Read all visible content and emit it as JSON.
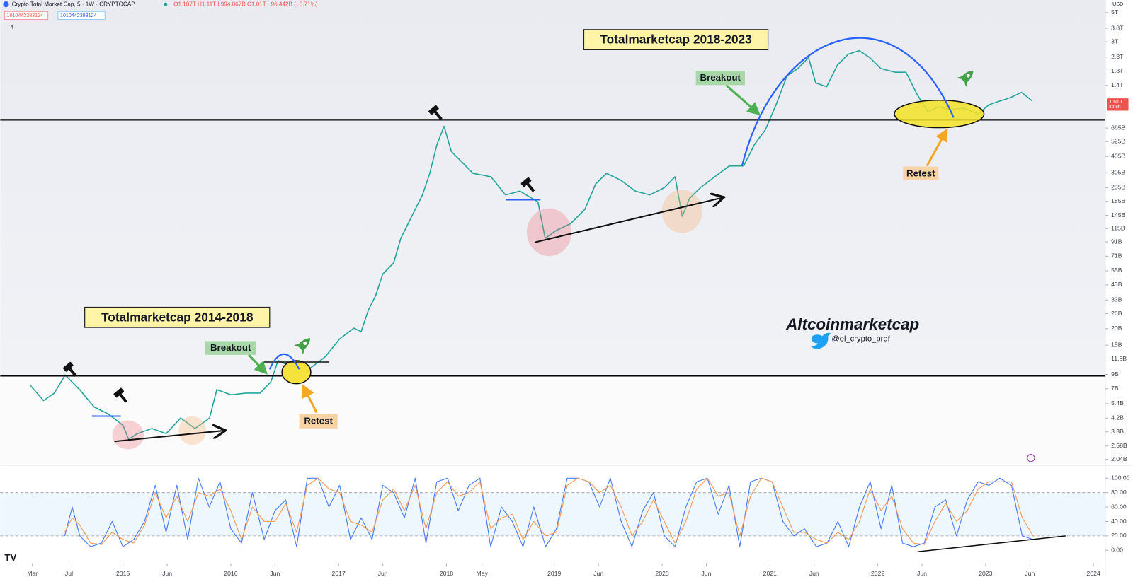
{
  "header": {
    "title": "Crypto Total Market Cap, 5 · 1W · CRYPTOCAP",
    "ohlc": "O1.107T H1.11T L994.067B C1.01T −96.442B (−8.71%)",
    "inputs": [
      "1010442383124",
      "1010442383124"
    ],
    "indicator_count": "4",
    "currency": "USD"
  },
  "chart_data": [
    {
      "type": "line",
      "log_scale": true,
      "grid": false,
      "color": "#26a69a",
      "annotations": [
        "Totalmarketcap 2018-2023",
        "Totalmarketcap 2014-2018",
        "Breakout",
        "Breakout",
        "Retest",
        "Retest",
        "Altcoinmarketcap",
        "@el_crypto_prof"
      ],
      "xlim": [
        2013.862,
        2024.11
      ],
      "ylim": [
        1890000000.0,
        6230000000000.0
      ],
      "yticks": [
        {
          "value": 5000000000000.0,
          "label": "5T"
        },
        {
          "value": 3800000000000.0,
          "label": "3.8T"
        },
        {
          "value": 3000000000000.0,
          "label": "3T"
        },
        {
          "value": 2300000000000.0,
          "label": "2.3T"
        },
        {
          "value": 1800000000000.0,
          "label": "1.8T"
        },
        {
          "value": 1400000000000.0,
          "label": "1.4T"
        },
        {
          "value": 665000000000.0,
          "label": "665B"
        },
        {
          "value": 525000000000.0,
          "label": "525B"
        },
        {
          "value": 405000000000.0,
          "label": "405B"
        },
        {
          "value": 305000000000.0,
          "label": "305B"
        },
        {
          "value": 235000000000.0,
          "label": "235B"
        },
        {
          "value": 185000000000.0,
          "label": "185B"
        },
        {
          "value": 145000000000.0,
          "label": "145B"
        },
        {
          "value": 115000000000.0,
          "label": "115B"
        },
        {
          "value": 91000000000.0,
          "label": "91B"
        },
        {
          "value": 71000000000.0,
          "label": "71B"
        },
        {
          "value": 55000000000.0,
          "label": "55B"
        },
        {
          "value": 43000000000.0,
          "label": "43B"
        },
        {
          "value": 33000000000.0,
          "label": "33B"
        },
        {
          "value": 26000000000.0,
          "label": "26B"
        },
        {
          "value": 20000000000.0,
          "label": "20B"
        },
        {
          "value": 15000000000.0,
          "label": "15B"
        },
        {
          "value": 11800000000.0,
          "label": "11.8B"
        },
        {
          "value": 9000000000.0,
          "label": "9B"
        },
        {
          "value": 7000000000.0,
          "label": "7B"
        },
        {
          "value": 5400000000.0,
          "label": "5.4B"
        },
        {
          "value": 4200000000.0,
          "label": "4.2B"
        },
        {
          "value": 3300000000.0,
          "label": "3.3B"
        },
        {
          "value": 2580000000.0,
          "label": "2.58B"
        },
        {
          "value": 2040000000.0,
          "label": "2.04B"
        }
      ],
      "last_value": {
        "value": 1010000000000.0,
        "label": "1.01T"
      },
      "countdown": "3d 8h",
      "x": [
        2014.143,
        2014.264,
        2014.364,
        2014.464,
        2014.598,
        2014.732,
        2014.866,
        2015.0,
        2015.053,
        2015.134,
        2015.268,
        2015.401,
        2015.535,
        2015.669,
        2015.803,
        2015.87,
        2016.004,
        2016.138,
        2016.272,
        2016.372,
        2016.439,
        2016.506,
        2016.606,
        2016.74,
        2016.874,
        2017.008,
        2017.142,
        2017.209,
        2017.276,
        2017.343,
        2017.409,
        2017.51,
        2017.577,
        2017.644,
        2017.711,
        2017.778,
        2017.845,
        2017.912,
        2017.978,
        2018.045,
        2018.146,
        2018.246,
        2018.413,
        2018.547,
        2018.681,
        2018.849,
        2018.916,
        2019.016,
        2019.15,
        2019.284,
        2019.384,
        2019.484,
        2019.618,
        2019.752,
        2019.886,
        2020.02,
        2020.12,
        2020.187,
        2020.254,
        2020.355,
        2020.488,
        2020.622,
        2020.756,
        2020.857,
        2020.957,
        2021.057,
        2021.158,
        2021.258,
        2021.358,
        2021.425,
        2021.526,
        2021.626,
        2021.727,
        2021.827,
        2021.927,
        2022.028,
        2022.162,
        2022.262,
        2022.362,
        2022.463,
        2022.563,
        2022.663,
        2022.797,
        2022.931,
        2023.032,
        2023.132,
        2023.233,
        2023.333,
        2023.433
      ],
      "values": [
        7400000000.0,
        5700000000.0,
        6500000000.0,
        8900000000.0,
        6900000000.0,
        5100000000.0,
        4500000000.0,
        3700000000.0,
        2900000000.0,
        3200000000.0,
        3500000000.0,
        3200000000.0,
        4200000000.0,
        3500000000.0,
        4200000000.0,
        6900000000.0,
        6300000000.0,
        6500000000.0,
        6500000000.0,
        7900000000.0,
        11500000000.0,
        10800000000.0,
        9500000000.0,
        10100000000.0,
        12200000000.0,
        16700000000.0,
        20200000000.0,
        19000000000.0,
        27700000000.0,
        35600000000.0,
        52000000000.0,
        63000000000.0,
        97000000000.0,
        125000000000.0,
        161000000000.0,
        207000000000.0,
        302000000000.0,
        500000000000.0,
        685000000000.0,
        442000000000.0,
        366000000000.0,
        302000000000.0,
        284000000000.0,
        207000000000.0,
        221000000000.0,
        183000000000.0,
        97000000000.0,
        111000000000.0,
        125000000000.0,
        161000000000.0,
        251000000000.0,
        302000000000.0,
        267000000000.0,
        221000000000.0,
        207000000000.0,
        235000000000.0,
        284000000000.0,
        142000000000.0,
        195000000000.0,
        235000000000.0,
        284000000000.0,
        343000000000.0,
        343000000000.0,
        500000000000.0,
        645000000000.0,
        1002000000000.0,
        1657000000000.0,
        1879000000000.0,
        2270000000000.0,
        1461000000000.0,
        1371000000000.0,
        2001000000000.0,
        2418000000000.0,
        2574000000000.0,
        2270000000000.0,
        1879000000000.0,
        1764000000000.0,
        1764000000000.0,
        1209000000000.0,
        883000000000.0,
        965000000000.0,
        918000000000.0,
        941000000000.0,
        851000000000.0,
        1002000000000.0,
        1067000000000.0,
        1135000000000.0,
        1240000000000.0,
        1067000000000.0
      ]
    },
    {
      "type": "line",
      "log_scale": false,
      "grid": false,
      "xlim": [
        2013.862,
        2024.11
      ],
      "ylim": [
        -17,
        117
      ],
      "band": [
        20,
        80
      ],
      "yticks": [
        {
          "value": 100,
          "label": "100.00"
        },
        {
          "value": 80,
          "label": "80.00"
        },
        {
          "value": 60,
          "label": "60.00"
        },
        {
          "value": 40,
          "label": "40.00"
        },
        {
          "value": 20,
          "label": "20.00"
        },
        {
          "value": 0,
          "label": "0.00"
        }
      ],
      "xticks": [
        {
          "value": 2014.16,
          "label": "Mar"
        },
        {
          "value": 2014.5,
          "label": "Jul"
        },
        2015,
        {
          "value": 2015.41,
          "label": "Jun"
        },
        2016,
        {
          "value": 2016.41,
          "label": "Jun"
        },
        2017,
        {
          "value": 2017.41,
          "label": "Jun"
        },
        2018,
        {
          "value": 2018.33,
          "label": "May"
        },
        2019,
        {
          "value": 2019.41,
          "label": "Jun"
        },
        2020,
        {
          "value": 2020.41,
          "label": "Jun"
        },
        2021,
        {
          "value": 2021.41,
          "label": "Jun"
        },
        2022,
        {
          "value": 2022.41,
          "label": "Jun"
        },
        2023,
        {
          "value": 2023.41,
          "label": "Jun"
        },
        2024
      ],
      "x": [
        2014.46,
        2014.53,
        2014.6,
        2014.7,
        2014.8,
        2014.9,
        2015.0,
        2015.1,
        2015.2,
        2015.3,
        2015.4,
        2015.5,
        2015.6,
        2015.7,
        2015.8,
        2015.9,
        2016.0,
        2016.1,
        2016.2,
        2016.31,
        2016.41,
        2016.51,
        2016.61,
        2016.71,
        2016.81,
        2016.91,
        2017.01,
        2017.11,
        2017.21,
        2017.31,
        2017.41,
        2017.51,
        2017.61,
        2017.71,
        2017.81,
        2017.91,
        2018.01,
        2018.11,
        2018.21,
        2018.31,
        2018.41,
        2018.51,
        2018.61,
        2018.71,
        2018.81,
        2018.92,
        2019.02,
        2019.12,
        2019.22,
        2019.32,
        2019.42,
        2019.52,
        2019.62,
        2019.72,
        2019.82,
        2019.92,
        2020.02,
        2020.12,
        2020.22,
        2020.32,
        2020.42,
        2020.52,
        2020.62,
        2020.72,
        2020.82,
        2020.92,
        2021.02,
        2021.12,
        2021.22,
        2021.32,
        2021.43,
        2021.53,
        2021.63,
        2021.73,
        2021.83,
        2021.93,
        2022.03,
        2022.13,
        2022.23,
        2022.33,
        2022.43,
        2022.53,
        2022.63,
        2022.73,
        2022.83,
        2022.93,
        2023.03,
        2023.13,
        2023.24,
        2023.34,
        2023.44
      ],
      "series": [
        {
          "color": "#4a7cf0",
          "values": [
            20,
            60,
            20,
            5,
            10,
            40,
            5,
            15,
            40,
            90,
            25,
            90,
            15,
            100,
            60,
            95,
            30,
            10,
            80,
            15,
            55,
            70,
            5,
            100,
            100,
            60,
            90,
            15,
            45,
            15,
            90,
            80,
            45,
            100,
            10,
            95,
            100,
            55,
            90,
            100,
            5,
            60,
            40,
            5,
            60,
            5,
            30,
            100,
            100,
            95,
            60,
            100,
            40,
            5,
            55,
            80,
            20,
            5,
            60,
            95,
            100,
            50,
            90,
            5,
            95,
            100,
            95,
            40,
            20,
            30,
            5,
            10,
            40,
            5,
            60,
            95,
            30,
            90,
            10,
            5,
            10,
            60,
            70,
            20,
            70,
            95,
            90,
            100,
            90,
            20,
            15
          ]
        },
        {
          "color": "#f29a5a",
          "values": [
            25,
            45,
            35,
            10,
            8,
            25,
            15,
            10,
            35,
            80,
            45,
            75,
            40,
            80,
            75,
            85,
            55,
            15,
            60,
            40,
            40,
            65,
            25,
            90,
            100,
            85,
            80,
            40,
            35,
            25,
            70,
            85,
            55,
            90,
            30,
            80,
            95,
            75,
            80,
            95,
            30,
            45,
            50,
            15,
            40,
            20,
            25,
            90,
            100,
            95,
            80,
            90,
            60,
            20,
            40,
            70,
            40,
            10,
            40,
            85,
            100,
            75,
            80,
            20,
            75,
            100,
            95,
            60,
            25,
            25,
            15,
            10,
            25,
            15,
            40,
            85,
            55,
            75,
            30,
            10,
            8,
            40,
            65,
            40,
            55,
            85,
            95,
            95,
            95,
            45,
            20
          ]
        }
      ]
    }
  ]
}
